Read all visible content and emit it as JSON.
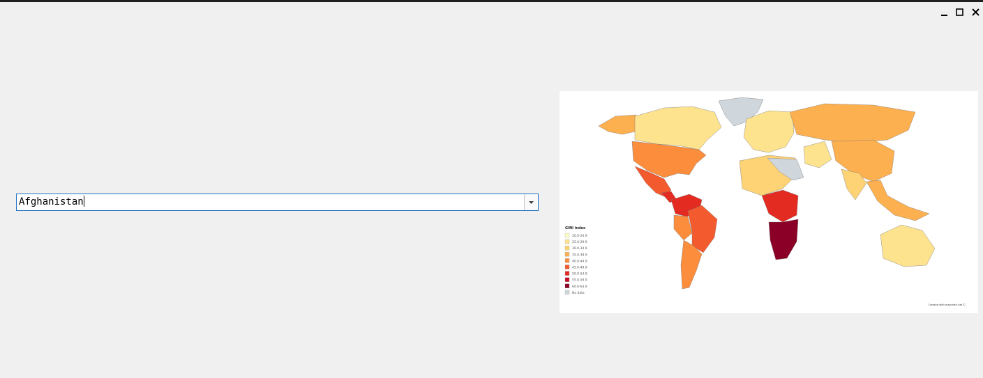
{
  "combobox": {
    "value": "Afghanistan"
  },
  "map": {
    "legend": {
      "title": "GINI index",
      "items": [
        {
          "label": "20.0-24.9",
          "color": "#ffffc4"
        },
        {
          "label": "25.0-29.9",
          "color": "#fee38e"
        },
        {
          "label": "30.0-34.9",
          "color": "#fed376"
        },
        {
          "label": "35.0-39.9",
          "color": "#fdb04f"
        },
        {
          "label": "40.0-44.9",
          "color": "#fb8d3c"
        },
        {
          "label": "45.0-49.9",
          "color": "#f35a2e"
        },
        {
          "label": "50.0-54.9",
          "color": "#e32b21"
        },
        {
          "label": "55.0-59.9",
          "color": "#c20d22"
        },
        {
          "label": "60.0-64.9",
          "color": "#8b0026"
        },
        {
          "label": "No data",
          "color": "#cfd6dc"
        }
      ]
    },
    "credit": "Created with mapchart.net ©"
  }
}
